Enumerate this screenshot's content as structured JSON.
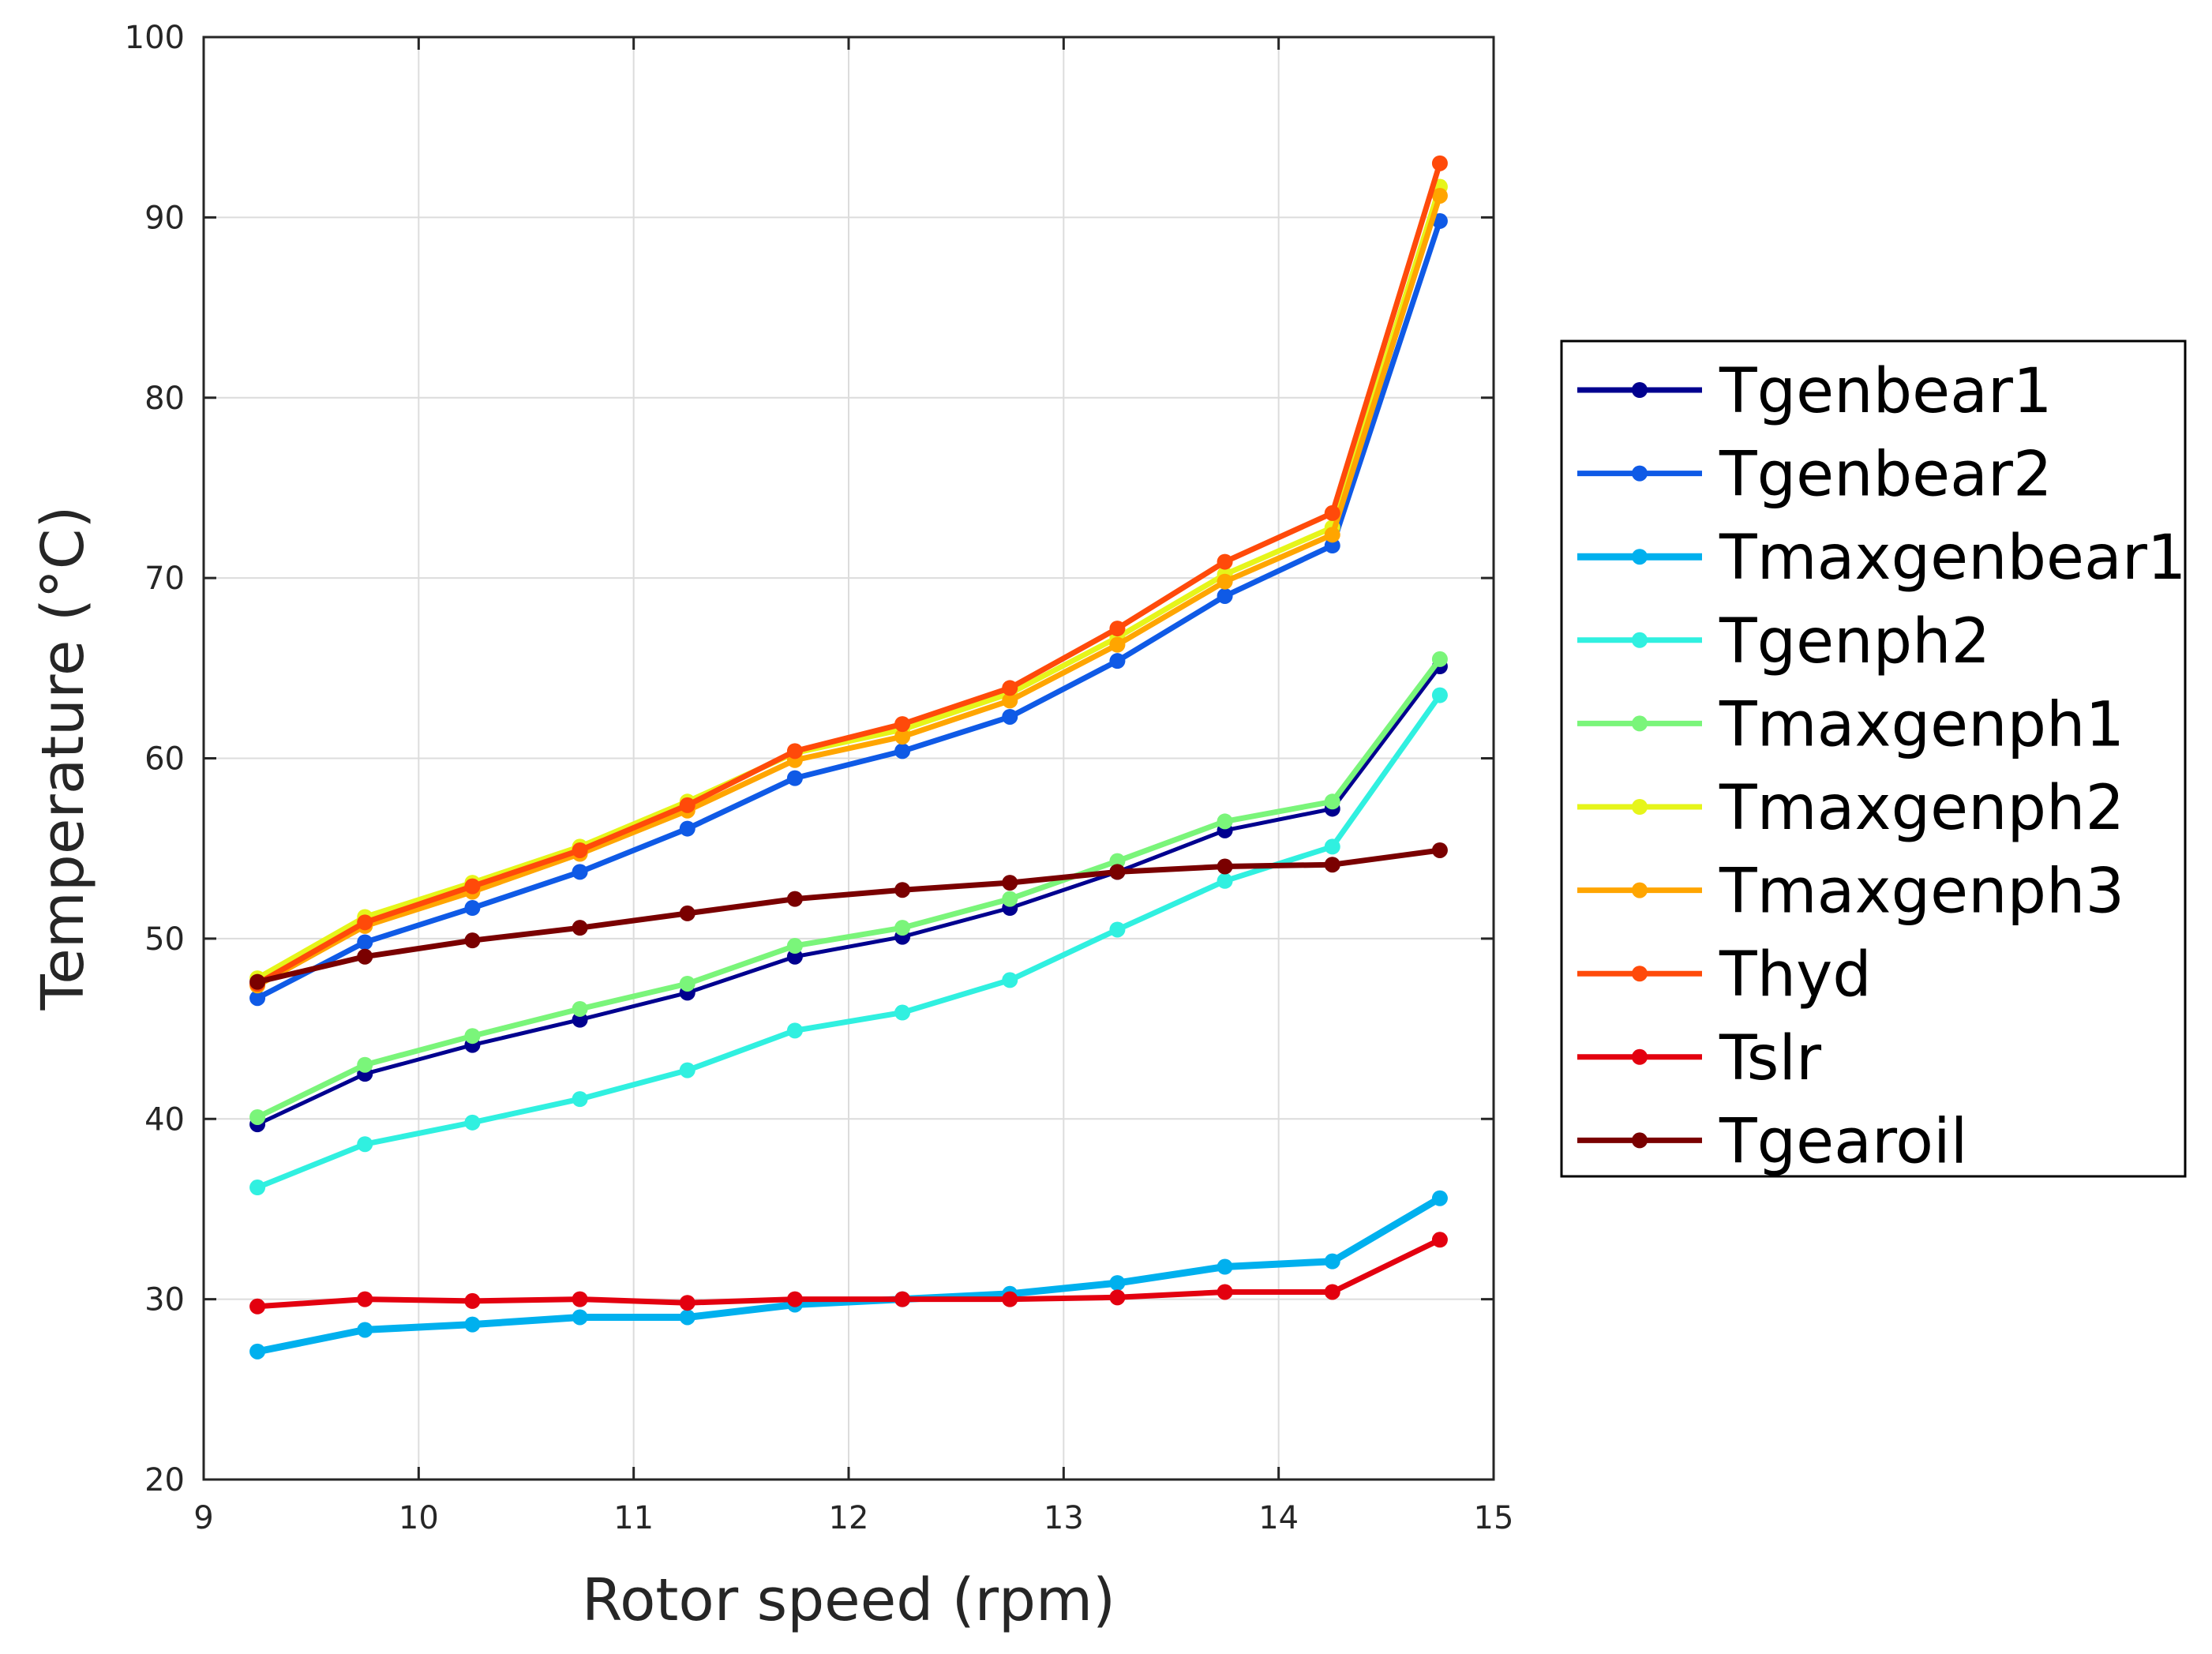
{
  "chart_data": {
    "type": "line",
    "title": "",
    "xlabel": "Rotor speed (rpm)",
    "ylabel": "Temperature (°C)",
    "xlim": [
      9,
      15
    ],
    "ylim": [
      20,
      100
    ],
    "xticks": [
      9,
      10,
      11,
      12,
      13,
      14,
      15
    ],
    "yticks": [
      20,
      30,
      40,
      50,
      60,
      70,
      80,
      90,
      100
    ],
    "grid": true,
    "legend_position": "right-outside",
    "x": [
      9.25,
      9.75,
      10.25,
      10.75,
      11.25,
      11.75,
      12.25,
      12.75,
      13.25,
      13.75,
      14.25,
      14.75
    ],
    "series": [
      {
        "name": "Tgenbear1",
        "color": "#00008f",
        "width": 5,
        "values": [
          39.7,
          42.5,
          44.1,
          45.5,
          47.0,
          49.0,
          50.1,
          51.7,
          53.7,
          56.0,
          57.2,
          65.1
        ]
      },
      {
        "name": "Tgenbear2",
        "color": "#0f5ae6",
        "width": 7,
        "values": [
          46.7,
          49.8,
          51.7,
          53.7,
          56.1,
          58.9,
          60.4,
          62.3,
          65.4,
          69.0,
          71.8,
          89.8
        ]
      },
      {
        "name": "Tmaxgenbear1",
        "color": "#00b0ee",
        "width": 9,
        "values": [
          27.1,
          28.3,
          28.6,
          29.0,
          29.0,
          29.7,
          30.0,
          30.3,
          30.9,
          31.8,
          32.1,
          35.6
        ]
      },
      {
        "name": "Tgenph2",
        "color": "#30f0e0",
        "width": 7,
        "values": [
          36.2,
          38.6,
          39.8,
          41.1,
          42.7,
          44.9,
          45.9,
          47.7,
          50.5,
          53.2,
          55.1,
          63.5
        ]
      },
      {
        "name": "Tmaxgenph1",
        "color": "#7af57a",
        "width": 7,
        "values": [
          40.1,
          43.0,
          44.6,
          46.1,
          47.5,
          49.6,
          50.6,
          52.2,
          54.3,
          56.5,
          57.6,
          65.5
        ]
      },
      {
        "name": "Tmaxgenph2",
        "color": "#e6f51a",
        "width": 7,
        "values": [
          47.8,
          51.2,
          53.1,
          55.1,
          57.6,
          60.3,
          61.6,
          63.6,
          66.7,
          70.2,
          72.8,
          91.7
        ]
      },
      {
        "name": "Tmaxgenph3",
        "color": "#ffa500",
        "width": 7,
        "values": [
          47.4,
          50.7,
          52.6,
          54.7,
          57.1,
          59.9,
          61.2,
          63.2,
          66.3,
          69.8,
          72.4,
          91.2
        ]
      },
      {
        "name": "Thyd",
        "color": "#ff4a0a",
        "width": 7,
        "values": [
          47.5,
          50.9,
          52.9,
          54.9,
          57.4,
          60.4,
          61.9,
          63.9,
          67.2,
          70.9,
          73.6,
          93.0
        ]
      },
      {
        "name": "Tslr",
        "color": "#e3000f",
        "width": 7,
        "values": [
          29.6,
          30.0,
          29.9,
          30.0,
          29.8,
          30.0,
          30.0,
          30.0,
          30.1,
          30.4,
          30.4,
          33.3
        ]
      },
      {
        "name": "Tgearoil",
        "color": "#7a0000",
        "width": 7,
        "values": [
          47.6,
          49.0,
          49.9,
          50.6,
          51.4,
          52.2,
          52.7,
          53.1,
          53.7,
          54.0,
          54.1,
          54.9
        ]
      }
    ]
  }
}
